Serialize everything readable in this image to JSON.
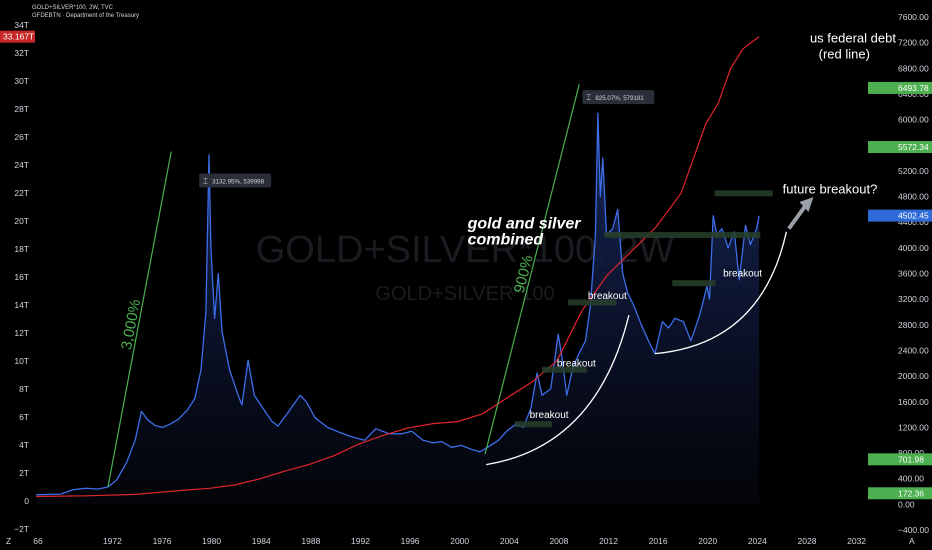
{
  "header": {
    "symbol_line": "GOLD+SILVER*100, 2W, TVC",
    "debt_line": "GFDEBTN · Department of the Treasury"
  },
  "watermark": {
    "big": "GOLD+SILVER*100, 2W",
    "small": "GOLD+SILVER*100"
  },
  "colors": {
    "background": "#000000",
    "price_line": "#3d6ee8",
    "debt_line": "#e0262d",
    "trend_line": "#4caf50",
    "breakout_bar": "#27402a",
    "curve": "#ffffff",
    "label_green": "#4caf50",
    "label_blue": "#2f6bd8",
    "label_red": "#c62828"
  },
  "chart_data": {
    "type": "line",
    "series": [
      {
        "name": "GOLD+SILVER*100",
        "axis": "right",
        "points": [
          [
            1966,
            150
          ],
          [
            1968,
            160
          ],
          [
            1969,
            230
          ],
          [
            1970,
            250
          ],
          [
            1971,
            240
          ],
          [
            1971.8,
            270
          ],
          [
            1972.5,
            380
          ],
          [
            1973.3,
            650
          ],
          [
            1974,
            1000
          ],
          [
            1974.5,
            1450
          ],
          [
            1975,
            1320
          ],
          [
            1975.6,
            1230
          ],
          [
            1976.2,
            1200
          ],
          [
            1976.8,
            1250
          ],
          [
            1977.5,
            1330
          ],
          [
            1978.2,
            1470
          ],
          [
            1978.8,
            1650
          ],
          [
            1979.3,
            2100
          ],
          [
            1979.7,
            3000
          ],
          [
            1979.95,
            5450
          ],
          [
            1980.1,
            4000
          ],
          [
            1980.4,
            2900
          ],
          [
            1980.7,
            3600
          ],
          [
            1981,
            2700
          ],
          [
            1981.6,
            2100
          ],
          [
            1982.3,
            1700
          ],
          [
            1982.6,
            1550
          ],
          [
            1983.1,
            2250
          ],
          [
            1983.6,
            1700
          ],
          [
            1984.3,
            1500
          ],
          [
            1985,
            1300
          ],
          [
            1985.5,
            1220
          ],
          [
            1986.2,
            1400
          ],
          [
            1987.3,
            1700
          ],
          [
            1987.8,
            1600
          ],
          [
            1988.5,
            1350
          ],
          [
            1989.5,
            1200
          ],
          [
            1990.5,
            1120
          ],
          [
            1991.5,
            1050
          ],
          [
            1992.5,
            1000
          ],
          [
            1993.4,
            1180
          ],
          [
            1994.5,
            1100
          ],
          [
            1995.5,
            1100
          ],
          [
            1996.3,
            1140
          ],
          [
            1997.2,
            1000
          ],
          [
            1998,
            960
          ],
          [
            1998.7,
            980
          ],
          [
            1999.5,
            890
          ],
          [
            2000.3,
            920
          ],
          [
            2001.2,
            850
          ],
          [
            2001.8,
            820
          ],
          [
            2002.5,
            900
          ],
          [
            2003.3,
            1000
          ],
          [
            2004,
            1150
          ],
          [
            2004.7,
            1250
          ],
          [
            2005.3,
            1200
          ],
          [
            2005.9,
            1500
          ],
          [
            2006.4,
            2050
          ],
          [
            2006.8,
            1700
          ],
          [
            2007.5,
            1800
          ],
          [
            2008.1,
            2650
          ],
          [
            2008.4,
            2300
          ],
          [
            2008.8,
            1700
          ],
          [
            2009.3,
            2150
          ],
          [
            2009.9,
            2400
          ],
          [
            2010.3,
            2550
          ],
          [
            2010.7,
            3100
          ],
          [
            2011.1,
            4200
          ],
          [
            2011.3,
            6100
          ],
          [
            2011.5,
            4800
          ],
          [
            2011.7,
            5400
          ],
          [
            2012,
            4200
          ],
          [
            2012.5,
            4300
          ],
          [
            2012.9,
            4600
          ],
          [
            2013.3,
            3600
          ],
          [
            2013.7,
            3300
          ],
          [
            2014.2,
            3100
          ],
          [
            2014.8,
            2800
          ],
          [
            2015.5,
            2500
          ],
          [
            2015.9,
            2350
          ],
          [
            2016.5,
            2850
          ],
          [
            2017,
            2750
          ],
          [
            2017.5,
            2900
          ],
          [
            2018.2,
            2850
          ],
          [
            2018.8,
            2550
          ],
          [
            2019.5,
            2950
          ],
          [
            2020.1,
            3400
          ],
          [
            2020.3,
            3200
          ],
          [
            2020.6,
            4500
          ],
          [
            2020.9,
            4200
          ],
          [
            2021.3,
            4300
          ],
          [
            2021.8,
            4000
          ],
          [
            2022.3,
            4250
          ],
          [
            2022.7,
            3500
          ],
          [
            2023.2,
            4350
          ],
          [
            2023.6,
            4050
          ],
          [
            2024.1,
            4300
          ],
          [
            2024.3,
            4500
          ]
        ]
      },
      {
        "name": "GFDEBTN",
        "axis": "left",
        "points": [
          [
            1966,
            0.32
          ],
          [
            1970,
            0.37
          ],
          [
            1974,
            0.47
          ],
          [
            1978,
            0.78
          ],
          [
            1980,
            0.91
          ],
          [
            1982,
            1.14
          ],
          [
            1984,
            1.57
          ],
          [
            1986,
            2.12
          ],
          [
            1988,
            2.6
          ],
          [
            1990,
            3.23
          ],
          [
            1992,
            4.06
          ],
          [
            1994,
            4.69
          ],
          [
            1996,
            5.22
          ],
          [
            1998,
            5.53
          ],
          [
            2000,
            5.67
          ],
          [
            2002,
            6.23
          ],
          [
            2004,
            7.38
          ],
          [
            2006,
            8.51
          ],
          [
            2008,
            10.0
          ],
          [
            2010,
            13.56
          ],
          [
            2012,
            16.07
          ],
          [
            2014,
            17.82
          ],
          [
            2016,
            19.57
          ],
          [
            2018,
            21.97
          ],
          [
            2020,
            26.94
          ],
          [
            2021,
            28.4
          ],
          [
            2022,
            30.9
          ],
          [
            2023,
            32.3
          ],
          [
            2024.3,
            33.17
          ]
        ]
      }
    ],
    "right_axis_ticks": [
      "7600.00",
      "7200.00",
      "6800.00",
      "6400.00",
      "6000.00",
      "5600.00",
      "5200.00",
      "4800.00",
      "4400.00",
      "4000.00",
      "3600.00",
      "3200.00",
      "2800.00",
      "2400.00",
      "2000.00",
      "1600.00",
      "1200.00",
      "800.00",
      "400.00",
      "0.00",
      "−400.00"
    ],
    "left_axis_ticks": [
      "34T",
      "32T",
      "30T",
      "28T",
      "26T",
      "24T",
      "22T",
      "20T",
      "18T",
      "16T",
      "14T",
      "12T",
      "10T",
      "8T",
      "6T",
      "4T",
      "2T",
      "0",
      "−2T"
    ],
    "x_axis_ticks": [
      "1966",
      "1972",
      "1976",
      "1980",
      "1984",
      "1988",
      "1992",
      "1996",
      "2000",
      "2004",
      "2008",
      "2012",
      "2016",
      "2020",
      "2024",
      "2028",
      "2032"
    ],
    "x_tick_labels": [
      "66",
      "1972",
      "1976",
      "1980",
      "1984",
      "1988",
      "1992",
      "1996",
      "2000",
      "2004",
      "2008",
      "2012",
      "2016",
      "2020",
      "2024",
      "2028",
      "2032"
    ],
    "right_ylim": [
      -400,
      7600
    ],
    "left_ylim": [
      -2,
      34
    ],
    "xlim": [
      1966,
      2033
    ],
    "price_labels": [
      {
        "value": "6493.78",
        "color": "green",
        "at": 6493.78
      },
      {
        "value": "5572.34",
        "color": "green",
        "at": 5572.34
      },
      {
        "value": "4502.45",
        "color": "blue",
        "at": 4502.45
      },
      {
        "value": "701.98",
        "color": "green",
        "at": 701.98
      },
      {
        "value": "172.36",
        "color": "green",
        "at": 172.36
      }
    ],
    "debt_label": {
      "value": "33.167T",
      "at": 33.167
    },
    "measure_boxes": [
      {
        "text": "3132.95%, 539998",
        "x": 1980.2,
        "y": 5050
      },
      {
        "text": "825.07%, 579181",
        "x": 2011.1,
        "y": 6350
      }
    ],
    "trend_lines": [
      {
        "label": "3,000%",
        "from": [
          1971.8,
          270
        ],
        "to": [
          1976.9,
          5500
        ]
      },
      {
        "label": "900%",
        "from": [
          2002.2,
          780
        ],
        "to": [
          2009.8,
          6550
        ]
      }
    ],
    "annotations": [
      {
        "text": "gold and silver",
        "x": 2000.8,
        "y": 4300
      },
      {
        "text": "combined",
        "x": 2000.8,
        "y": 4050
      },
      {
        "text": "breakout",
        "x": 2005.8,
        "y": 1350
      },
      {
        "text": "breakout",
        "x": 2008.0,
        "y": 2150
      },
      {
        "text": "breakout",
        "x": 2010.5,
        "y": 3200
      },
      {
        "text": "breakout",
        "x": 2021.4,
        "y": 3550
      },
      {
        "text": "future breakout?",
        "x": 2026.2,
        "y": 4850
      },
      {
        "text": "us federal debt",
        "x": 2028.4,
        "y": 7200
      },
      {
        "text": "(red line)",
        "x": 2029.1,
        "y": 6950
      }
    ],
    "breakout_levels": [
      {
        "x0": 2004.6,
        "x1": 2007.6,
        "y": 1250
      },
      {
        "x0": 2006.8,
        "x1": 2010.4,
        "y": 2100
      },
      {
        "x0": 2008.9,
        "x1": 2012.8,
        "y": 3150
      },
      {
        "x0": 2011.8,
        "x1": 2024.4,
        "y": 4200
      },
      {
        "x0": 2017.3,
        "x1": 2020.8,
        "y": 3450
      },
      {
        "x0": 2020.7,
        "x1": 2025.4,
        "y": 4850
      }
    ],
    "curves": [
      {
        "from": [
          2002.3,
          620
        ],
        "ctrl": [
          2011.2,
          900
        ],
        "to": [
          2013.8,
          2950
        ]
      },
      {
        "from": [
          2015.9,
          2350
        ],
        "ctrl": [
          2024.5,
          2500
        ],
        "to": [
          2026.5,
          4250
        ]
      }
    ],
    "arrow": {
      "from": [
        2026.7,
        4300
      ],
      "to": [
        2028.2,
        4700
      ]
    }
  }
}
